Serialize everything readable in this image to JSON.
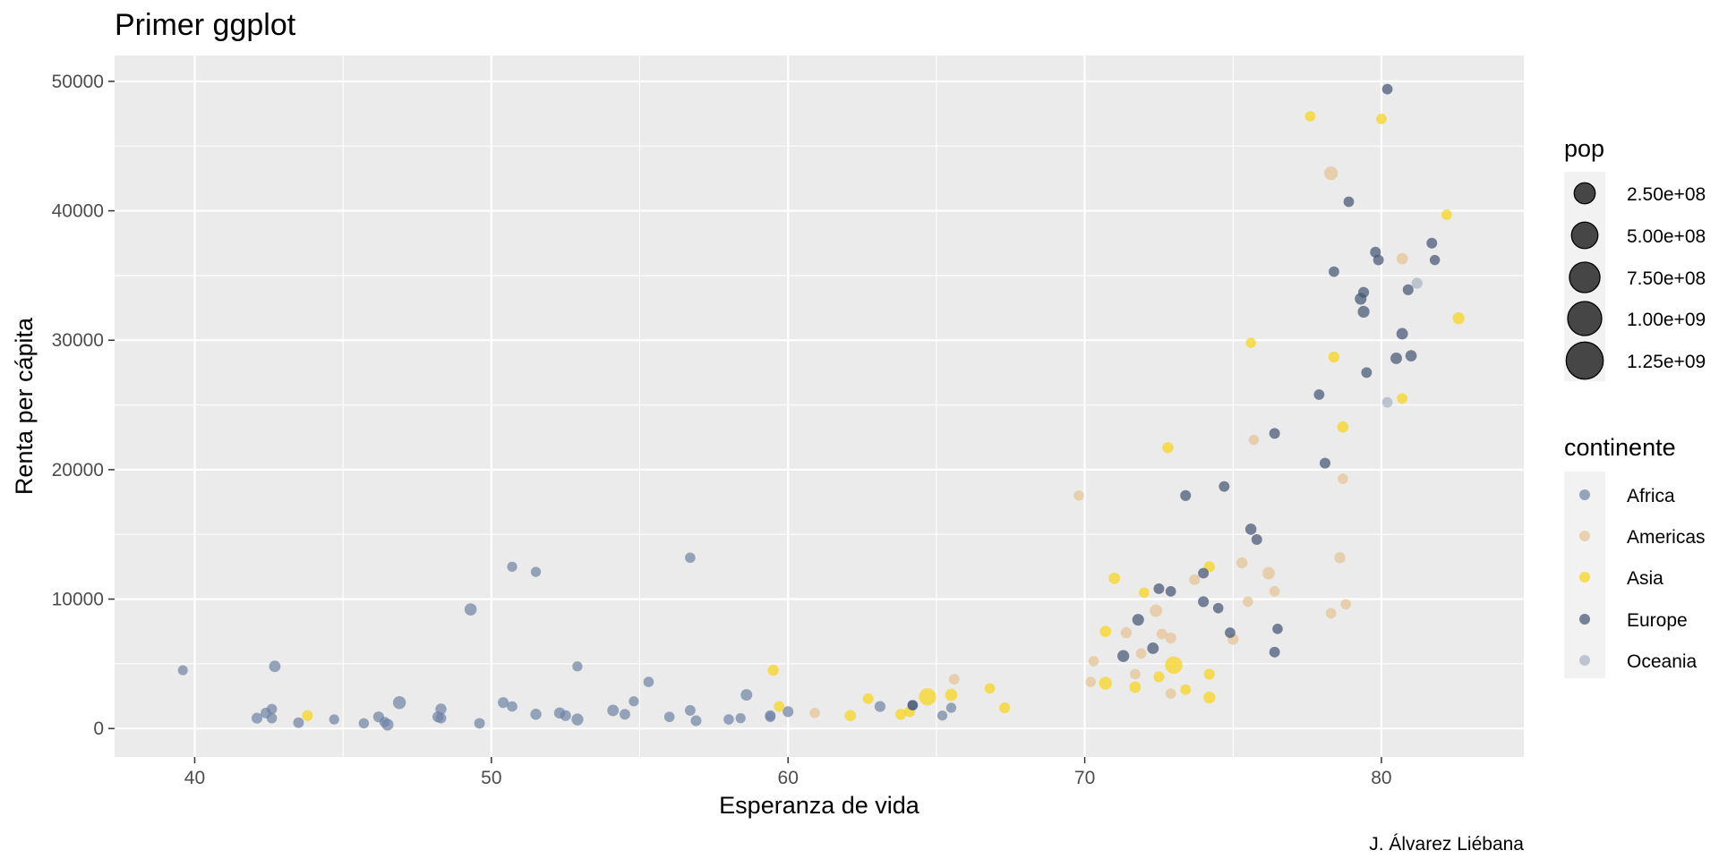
{
  "chart_data": {
    "type": "scatter",
    "title": "Primer ggplot",
    "xlabel": "Esperanza de vida",
    "ylabel": "Renta per cápita",
    "caption": "J. Álvarez Liébana",
    "xlim": [
      37.3,
      84.8
    ],
    "ylim": [
      -2200,
      52000
    ],
    "x_ticks": [
      40,
      50,
      60,
      70,
      80
    ],
    "y_ticks": [
      0,
      10000,
      20000,
      30000,
      40000,
      50000
    ],
    "x_tick_labels": [
      "40",
      "50",
      "60",
      "70",
      "80"
    ],
    "y_tick_labels": [
      "0",
      "10000",
      "20000",
      "30000",
      "40000",
      "50000"
    ],
    "grid": true,
    "size_legend": {
      "title": "pop",
      "breaks": [
        250000000,
        500000000,
        750000000,
        1000000000,
        1250000000
      ],
      "labels": [
        "2.50e+08",
        "5.00e+08",
        "7.50e+08",
        "1.00e+09",
        "1.25e+09"
      ],
      "color": "#333333"
    },
    "color_legend": {
      "title": "continente",
      "placement": "right",
      "entries": [
        {
          "name": "Africa",
          "color": "#7083A5"
        },
        {
          "name": "Americas",
          "color": "#E5C494"
        },
        {
          "name": "Asia",
          "color": "#F7D417"
        },
        {
          "name": "Europe",
          "color": "#435471"
        },
        {
          "name": "Oceania",
          "color": "#A7B3C2"
        }
      ]
    },
    "series": [
      {
        "name": "Africa",
        "points": [
          [
            39.6,
            4500,
            5
          ],
          [
            42.1,
            800,
            12
          ],
          [
            42.4,
            1200,
            10
          ],
          [
            42.6,
            1500,
            8
          ],
          [
            42.6,
            800,
            8
          ],
          [
            42.7,
            4800,
            18
          ],
          [
            43.5,
            450,
            10
          ],
          [
            44.7,
            700,
            6
          ],
          [
            45.7,
            400,
            7
          ],
          [
            46.2,
            900,
            12
          ],
          [
            46.4,
            500,
            8
          ],
          [
            46.5,
            300,
            22
          ],
          [
            46.9,
            2000,
            35
          ],
          [
            48.2,
            900,
            14
          ],
          [
            48.3,
            1500,
            14
          ],
          [
            48.3,
            800,
            10
          ],
          [
            49.3,
            9200,
            25
          ],
          [
            49.6,
            400,
            10
          ],
          [
            50.4,
            2000,
            12
          ],
          [
            50.7,
            1700,
            8
          ],
          [
            50.7,
            12500,
            6
          ],
          [
            51.5,
            12100,
            6
          ],
          [
            51.5,
            1100,
            14
          ],
          [
            52.3,
            1200,
            14
          ],
          [
            52.5,
            1000,
            12
          ],
          [
            52.9,
            4800,
            6
          ],
          [
            52.9,
            700,
            22
          ],
          [
            54.1,
            1400,
            18
          ],
          [
            54.5,
            1100,
            10
          ],
          [
            54.8,
            2100,
            6
          ],
          [
            55.3,
            3600,
            8
          ],
          [
            56.0,
            900,
            8
          ],
          [
            56.7,
            1400,
            10
          ],
          [
            56.7,
            13200,
            8
          ],
          [
            56.9,
            600,
            10
          ],
          [
            58.0,
            700,
            8
          ],
          [
            58.4,
            800,
            6
          ],
          [
            58.6,
            2600,
            18
          ],
          [
            59.4,
            900,
            8
          ],
          [
            59.4,
            1000,
            10
          ],
          [
            60.0,
            1300,
            12
          ],
          [
            63.1,
            1700,
            12
          ],
          [
            64.2,
            1800,
            10
          ],
          [
            65.2,
            1000,
            6
          ],
          [
            65.5,
            1600,
            6
          ]
        ]
      },
      {
        "name": "Americas",
        "points": [
          [
            60.9,
            1200,
            8
          ],
          [
            65.6,
            3800,
            10
          ],
          [
            69.8,
            18000,
            7
          ],
          [
            70.2,
            3600,
            8
          ],
          [
            70.3,
            5200,
            8
          ],
          [
            71.4,
            7400,
            14
          ],
          [
            71.7,
            4200,
            9
          ],
          [
            71.9,
            5800,
            9
          ],
          [
            72.4,
            9100,
            30
          ],
          [
            72.6,
            7300,
            10
          ],
          [
            72.9,
            2700,
            8
          ],
          [
            72.9,
            7000,
            14
          ],
          [
            73.7,
            11500,
            12
          ],
          [
            75.0,
            6900,
            14
          ],
          [
            75.3,
            12800,
            14
          ],
          [
            75.5,
            9800,
            8
          ],
          [
            75.7,
            22300,
            7
          ],
          [
            76.2,
            12000,
            28
          ],
          [
            76.4,
            10600,
            8
          ],
          [
            78.3,
            42900,
            45
          ],
          [
            78.3,
            8900,
            9
          ],
          [
            78.6,
            13200,
            14
          ],
          [
            78.7,
            19300,
            8
          ],
          [
            78.8,
            9600,
            8
          ],
          [
            80.7,
            36300,
            16
          ]
        ]
      },
      {
        "name": "Asia",
        "points": [
          [
            43.8,
            1000,
            11
          ],
          [
            59.5,
            4500,
            13
          ],
          [
            59.7,
            1700,
            10
          ],
          [
            62.1,
            1000,
            15
          ],
          [
            62.7,
            2300,
            11
          ],
          [
            63.8,
            1100,
            13
          ],
          [
            64.1,
            1300,
            12
          ],
          [
            64.7,
            2450,
            125
          ],
          [
            65.5,
            2600,
            25
          ],
          [
            66.8,
            3100,
            8
          ],
          [
            67.3,
            1600,
            12
          ],
          [
            70.7,
            3500,
            35
          ],
          [
            70.7,
            7500,
            16
          ],
          [
            71.0,
            11600,
            16
          ],
          [
            71.7,
            3200,
            18
          ],
          [
            72.0,
            10500,
            8
          ],
          [
            72.5,
            4000,
            12
          ],
          [
            72.8,
            21700,
            14
          ],
          [
            73.0,
            4900,
            130
          ],
          [
            73.4,
            3000,
            9
          ],
          [
            74.2,
            4200,
            12
          ],
          [
            74.2,
            12500,
            12
          ],
          [
            74.2,
            2400,
            22
          ],
          [
            75.6,
            29800,
            7
          ],
          [
            77.6,
            47300,
            9
          ],
          [
            78.4,
            28700,
            13
          ],
          [
            78.7,
            23300,
            16
          ],
          [
            80.0,
            47100,
            9
          ],
          [
            80.7,
            25500,
            9
          ],
          [
            82.2,
            39700,
            9
          ],
          [
            82.6,
            31700,
            22
          ]
        ]
      },
      {
        "name": "Europe",
        "points": [
          [
            64.2,
            1800,
            6
          ],
          [
            72.5,
            10800,
            10
          ],
          [
            72.9,
            10600,
            9
          ],
          [
            71.8,
            8400,
            20
          ],
          [
            72.3,
            6200,
            18
          ],
          [
            71.3,
            5600,
            22
          ],
          [
            74.0,
            12000,
            10
          ],
          [
            74.0,
            9800,
            12
          ],
          [
            74.5,
            9300,
            8
          ],
          [
            74.7,
            18700,
            10
          ],
          [
            74.9,
            7400,
            9
          ],
          [
            73.4,
            18000,
            11
          ],
          [
            75.6,
            15400,
            15
          ],
          [
            75.8,
            14600,
            10
          ],
          [
            76.4,
            22800,
            11
          ],
          [
            76.4,
            5900,
            10
          ],
          [
            76.5,
            7700,
            8
          ],
          [
            77.9,
            25800,
            9
          ],
          [
            78.1,
            20500,
            11
          ],
          [
            78.4,
            35300,
            9
          ],
          [
            78.9,
            40700,
            9
          ],
          [
            79.3,
            33200,
            20
          ],
          [
            79.4,
            32200,
            21
          ],
          [
            79.4,
            33700,
            12
          ],
          [
            79.5,
            27500,
            10
          ],
          [
            79.8,
            36800,
            12
          ],
          [
            79.9,
            36200,
            10
          ],
          [
            80.2,
            49400,
            9
          ],
          [
            80.5,
            28600,
            18
          ],
          [
            80.7,
            30500,
            18
          ],
          [
            80.9,
            33900,
            11
          ],
          [
            81.0,
            28800,
            16
          ],
          [
            81.7,
            37500,
            10
          ],
          [
            81.8,
            36200,
            7
          ]
        ]
      },
      {
        "name": "Oceania",
        "points": [
          [
            80.2,
            25200,
            9
          ],
          [
            81.2,
            34400,
            13
          ]
        ]
      }
    ]
  }
}
